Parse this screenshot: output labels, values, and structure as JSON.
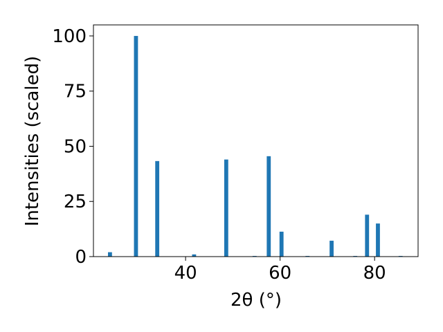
{
  "chart_data": {
    "type": "bar",
    "xlabel": "2θ (°)",
    "ylabel": "Intensities (scaled)",
    "x": [
      24.0,
      29.5,
      34.0,
      41.8,
      48.6,
      54.6,
      57.6,
      60.3,
      65.8,
      70.9,
      75.9,
      78.4,
      80.7,
      85.5
    ],
    "values": [
      2,
      100,
      43.3,
      1,
      44,
      0.3,
      45.5,
      11.3,
      0.3,
      7.2,
      0.3,
      19,
      15,
      0.3
    ],
    "color": "#1f77b4",
    "bar_width": 0.85,
    "xlim": [
      20.5,
      89.2
    ],
    "ylim": [
      0,
      105
    ],
    "xticks": [
      40,
      60,
      80
    ],
    "yticks": [
      0,
      25,
      50,
      75,
      100
    ]
  }
}
